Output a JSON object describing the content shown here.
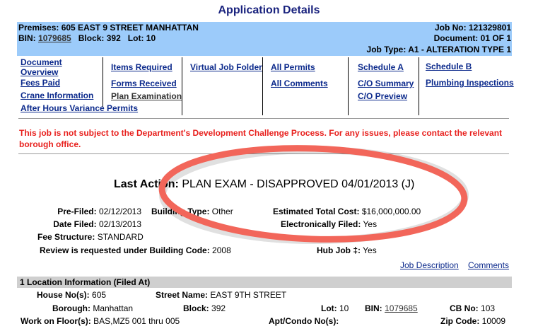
{
  "title": "Application Details",
  "header": {
    "premises": "Premises: 605 EAST 9 STREET MANHATTAN",
    "bin_label": "BIN:",
    "bin": "1079685",
    "block": "Block: 392",
    "lot": "Lot: 10",
    "job_no": "Job No: 121329801",
    "document": "Document: 01 OF 1",
    "job_type": "Job Type: A1 - ALTERATION TYPE 1"
  },
  "links": {
    "document_overview_1": "Document",
    "document_overview_2": "Overview",
    "fees_paid": "Fees Paid",
    "crane_information": "Crane Information",
    "after_hours": "After Hours Variance Permits",
    "items_required": "Items Required",
    "forms_received": "Forms Received",
    "plan_examination": "Plan Examination",
    "virtual_job_folder": "Virtual Job Folder",
    "all_permits": "All Permits",
    "all_comments": "All Comments",
    "schedule_a": "Schedule A",
    "co_summary": "C/O Summary",
    "co_preview": "C/O Preview",
    "schedule_b": "Schedule B",
    "plumbing_inspections": "Plumbing Inspections",
    "job_description": "Job Description",
    "comments": "Comments"
  },
  "notice": "This job is not subject to the Department's Development Challenge Process. For any issues, please contact the relevant borough office.",
  "last_action": {
    "label": "Last Action:",
    "value": "PLAN EXAM - DISAPPROVED 04/01/2013 (J)"
  },
  "details": {
    "pre_filed_label": "Pre-Filed:",
    "pre_filed": "02/12/2013",
    "building_type_label": "Building Type:",
    "building_type": "Other",
    "est_cost_label": "Estimated Total Cost:",
    "est_cost": "$16,000,000.00",
    "date_filed_label": "Date Filed:",
    "date_filed": "02/13/2013",
    "e_filed_label": "Electronically Filed:",
    "e_filed": "Yes",
    "fee_structure_label": "Fee Structure:",
    "fee_structure": "STANDARD",
    "building_code_label": "Review is requested under Building Code:",
    "building_code": "2008",
    "hub_job_label": "Hub Job ‡:",
    "hub_job": "Yes"
  },
  "location": {
    "section_title": "1  Location Information (Filed At)",
    "house_label": "House No(s):",
    "house": "605",
    "street_label": "Street Name:",
    "street": "EAST 9TH STREET",
    "borough_label": "Borough:",
    "borough": "Manhattan",
    "block_label": "Block:",
    "block": "392",
    "lot_label": "Lot:",
    "lot": "10",
    "bin_label": "BIN:",
    "bin": "1079685",
    "cb_label": "CB No:",
    "cb": "103",
    "floors_label": "Work on Floor(s):",
    "floors": "BAS,MZ5 001 thru 005",
    "apt_label": "Apt/Condo No(s):",
    "zip_label": "Zip Code:",
    "zip": "10009"
  },
  "annotation_color": "#f2665a"
}
